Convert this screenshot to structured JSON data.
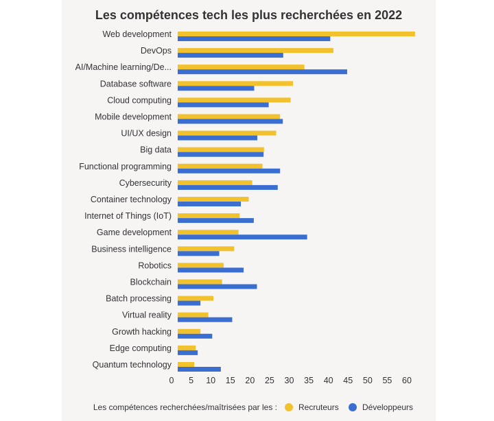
{
  "chart_data": {
    "type": "bar",
    "orientation": "horizontal",
    "title": "Les compétences tech les plus recherchées en 2022",
    "categories": [
      "Web development",
      "DevOps",
      "AI/Machine learning/De...",
      "Database software",
      "Cloud computing",
      "Mobile development",
      "UI/UX design",
      "Big data",
      "Functional programming",
      "Cybersecurity",
      "Container technology",
      "Internet of Things (IoT)",
      "Game development",
      "Business intelligence",
      "Robotics",
      "Blockchain",
      "Batch processing",
      "Virtual reality",
      "Growth hacking",
      "Edge computing",
      "Quantum technology"
    ],
    "series": [
      {
        "name": "Recruteurs",
        "color": "#f2c12e",
        "values": [
          60.5,
          39.7,
          32.3,
          29.4,
          28.8,
          26.1,
          25.1,
          22.0,
          21.6,
          19.0,
          18.1,
          15.8,
          15.5,
          14.4,
          11.7,
          11.3,
          9.1,
          7.8,
          5.8,
          4.6,
          4.2
        ]
      },
      {
        "name": "Développeurs",
        "color": "#3a6fd1",
        "values": [
          38.9,
          26.9,
          43.2,
          19.5,
          23.2,
          26.8,
          20.3,
          21.9,
          26.1,
          25.5,
          16.1,
          19.4,
          33.0,
          10.6,
          16.8,
          20.2,
          5.8,
          13.9,
          8.8,
          5.1,
          11.0
        ]
      }
    ],
    "xlim": [
      0,
      60
    ],
    "xticks": [
      0,
      5,
      10,
      15,
      20,
      25,
      30,
      35,
      40,
      45,
      50,
      55,
      60
    ],
    "legend_position": "bottom",
    "legend_prefix": "Les compétences recherchées/maîtrisées par les :",
    "grid": false
  }
}
